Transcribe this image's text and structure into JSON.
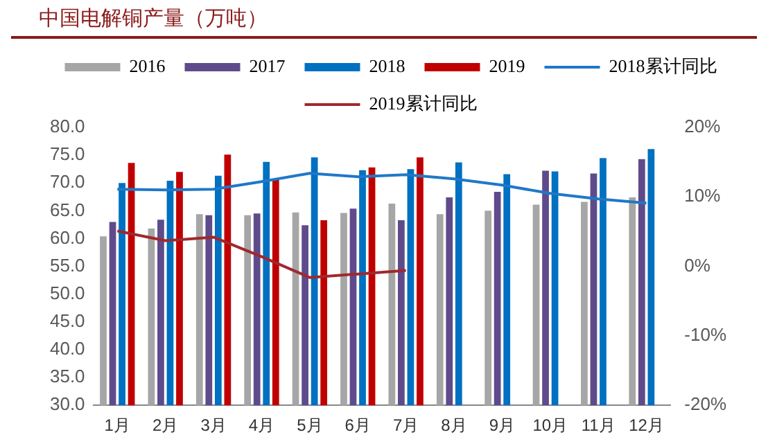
{
  "chart_data": {
    "type": "bar",
    "title": "中国电解铜产量（万吨）",
    "categories": [
      "1月",
      "2月",
      "3月",
      "4月",
      "5月",
      "6月",
      "7月",
      "8月",
      "9月",
      "10月",
      "11月",
      "12月"
    ],
    "series": [
      {
        "name": "2016",
        "color": "#a6a6a6",
        "values": [
          60.4,
          61.8,
          64.4,
          64.2,
          64.7,
          64.6,
          66.3,
          64.4,
          65.0,
          66.1,
          66.6,
          67.4
        ]
      },
      {
        "name": "2017",
        "color": "#5f4b8b",
        "values": [
          63.0,
          63.4,
          64.2,
          64.5,
          62.4,
          65.4,
          63.3,
          67.4,
          68.4,
          72.2,
          71.7,
          74.3
        ]
      },
      {
        "name": "2018",
        "color": "#0070c0",
        "values": [
          70.0,
          70.4,
          71.3,
          73.8,
          74.6,
          72.3,
          72.5,
          73.7,
          71.6,
          72.1,
          74.5,
          76.1
        ]
      },
      {
        "name": "2019",
        "color": "#c00000",
        "values": [
          73.6,
          72.0,
          75.1,
          70.6,
          63.3,
          72.8,
          74.6,
          null,
          null,
          null,
          null,
          null
        ]
      },
      {
        "name": "2018累计同比",
        "type": "line",
        "axis": "y2",
        "color": "#1f78c8",
        "values": [
          11.1,
          11.0,
          11.1,
          12.2,
          13.4,
          12.9,
          13.2,
          12.6,
          11.7,
          10.5,
          9.7,
          9.1
        ]
      },
      {
        "name": "2019累计同比",
        "type": "line",
        "axis": "y2",
        "color": "#a0282d",
        "values": [
          5.1,
          3.7,
          4.2,
          1.4,
          -1.6,
          -1.1,
          -0.6,
          null,
          null,
          null,
          null,
          null
        ]
      }
    ],
    "ylim": [
      30,
      80
    ],
    "yticks": [
      {
        "value": 30,
        "label": "30.0"
      },
      {
        "value": 35,
        "label": "35.0"
      },
      {
        "value": 40,
        "label": "40.0"
      },
      {
        "value": 45,
        "label": "45.0"
      },
      {
        "value": 50,
        "label": "50.0"
      },
      {
        "value": 55,
        "label": "55.0"
      },
      {
        "value": 60,
        "label": "60.0"
      },
      {
        "value": 65,
        "label": "65.0"
      },
      {
        "value": 70,
        "label": "70.0"
      },
      {
        "value": 75,
        "label": "75.0"
      },
      {
        "value": 80,
        "label": "80.0"
      }
    ],
    "y2lim": [
      -20,
      20
    ],
    "y2ticks": [
      {
        "value": -20,
        "label": "-20%"
      },
      {
        "value": -10,
        "label": "-10%"
      },
      {
        "value": 0,
        "label": "0%"
      },
      {
        "value": 10,
        "label": "10%"
      },
      {
        "value": 20,
        "label": "20%"
      }
    ],
    "grid": false,
    "legend": "top",
    "marker": "none",
    "line_style": "solid"
  }
}
